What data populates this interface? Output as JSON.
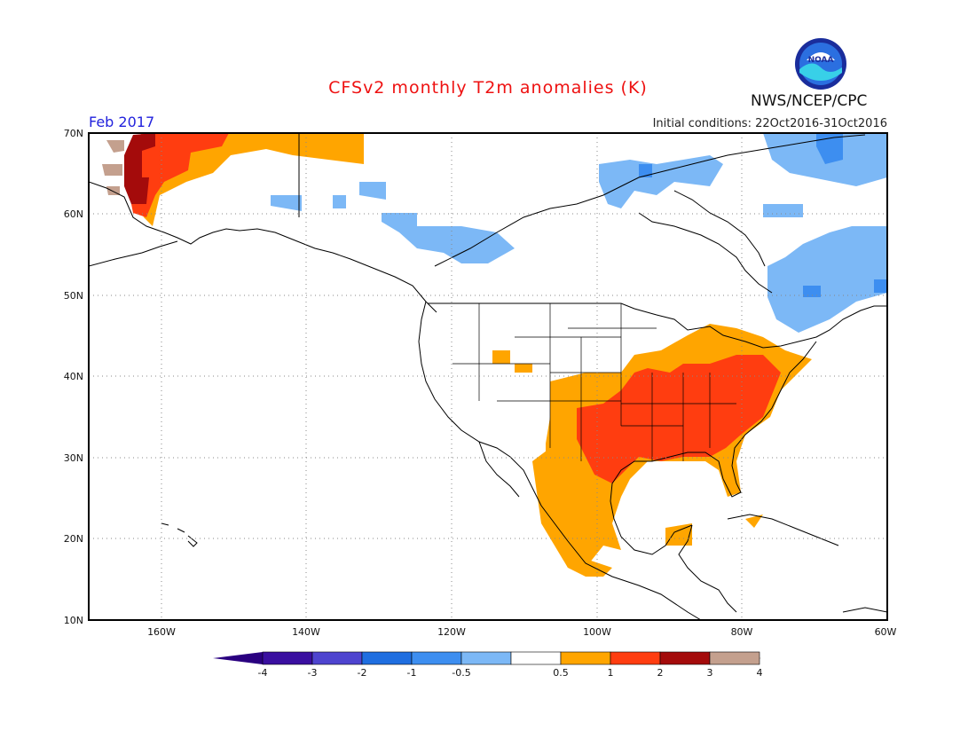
{
  "header": {
    "title": "CFSv2 monthly T2m anomalies (K)",
    "agency": "NWS/NCEP/CPC",
    "month": "Feb 2017",
    "initial_conditions": "Initial conditions: 22Oct2016-31Oct2016",
    "logo_text": "NOAA"
  },
  "map": {
    "lon_range": [
      -172,
      -60
    ],
    "lat_range": [
      10,
      70
    ],
    "lat_labels": [
      "70N",
      "60N",
      "50N",
      "40N",
      "30N",
      "20N",
      "10N"
    ],
    "lon_labels": [
      "160W",
      "140W",
      "120W",
      "100W",
      "80W",
      "60W"
    ],
    "gridlines": "dotted"
  },
  "colorbar": {
    "bins": [
      {
        "label": "-4",
        "color": "#3a0fa0"
      },
      {
        "label": "-3",
        "color": "#4e44cf"
      },
      {
        "label": "-2",
        "color": "#1f6ee0"
      },
      {
        "label": "-1",
        "color": "#3d8ef0"
      },
      {
        "label": "-0.5",
        "color": "#7cb8f6"
      },
      {
        "label": "0.5",
        "color": "#ffffff"
      },
      {
        "label": "1",
        "color": "#ffa500"
      },
      {
        "label": "2",
        "color": "#ff3d10"
      },
      {
        "label": "3",
        "color": "#a40b0b"
      },
      {
        "label": "4",
        "color": "#c4a08e"
      }
    ],
    "end_low_color": "#2a0080",
    "end_high_color": "#6e4a3c",
    "tick_labels": [
      "-4",
      "-3",
      "-2",
      "-1",
      "-0.5",
      "0.5",
      "1",
      "2",
      "3",
      "4"
    ]
  }
}
